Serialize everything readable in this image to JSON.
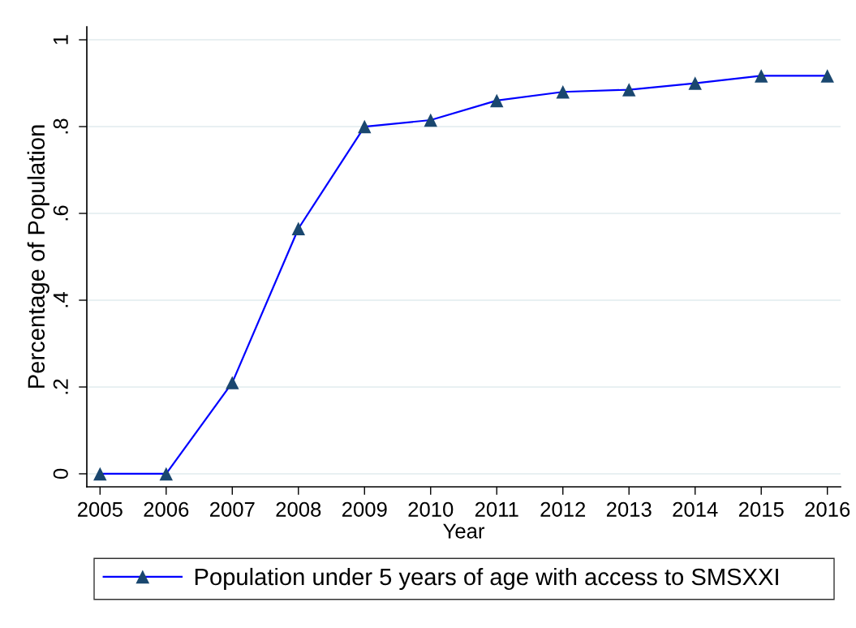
{
  "chart_data": {
    "type": "line",
    "xlabel": "Year",
    "ylabel": "Percentage of Population",
    "x": [
      2005,
      2006,
      2007,
      2008,
      2009,
      2010,
      2011,
      2012,
      2013,
      2014,
      2015,
      2016
    ],
    "series": [
      {
        "name": "Population under 5 years of age with access to SMSXXI",
        "color": "#0000ff",
        "colors": [
          "#1a476f",
          "#1a476f",
          "#1a476f",
          "#1a476f",
          "#1a476f",
          "#1a476f",
          "#1a476f",
          "#1a476f",
          "#1a476f",
          "#1a476f",
          "#1a476f",
          "#1a476f"
        ],
        "values": [
          0,
          0,
          0.21,
          0.565,
          0.8,
          0.815,
          0.86,
          0.88,
          0.885,
          0.9,
          0.917,
          0.917
        ]
      }
    ],
    "xlim": [
      2004.8,
      2016.2
    ],
    "ylim": [
      -0.03,
      1.03
    ],
    "xticks": [
      2005,
      2006,
      2007,
      2008,
      2009,
      2010,
      2011,
      2012,
      2013,
      2014,
      2015,
      2016
    ],
    "yticks": [
      0,
      {
        "value": 0.2,
        "label": ".2"
      },
      {
        "value": 0.4,
        "label": ".4"
      },
      {
        "value": 0.6,
        "label": ".6"
      },
      {
        "value": 0.8,
        "label": ".8"
      },
      1
    ],
    "grid": "y",
    "legend": "bottom",
    "marker": "triangle",
    "line_style": "solid"
  }
}
